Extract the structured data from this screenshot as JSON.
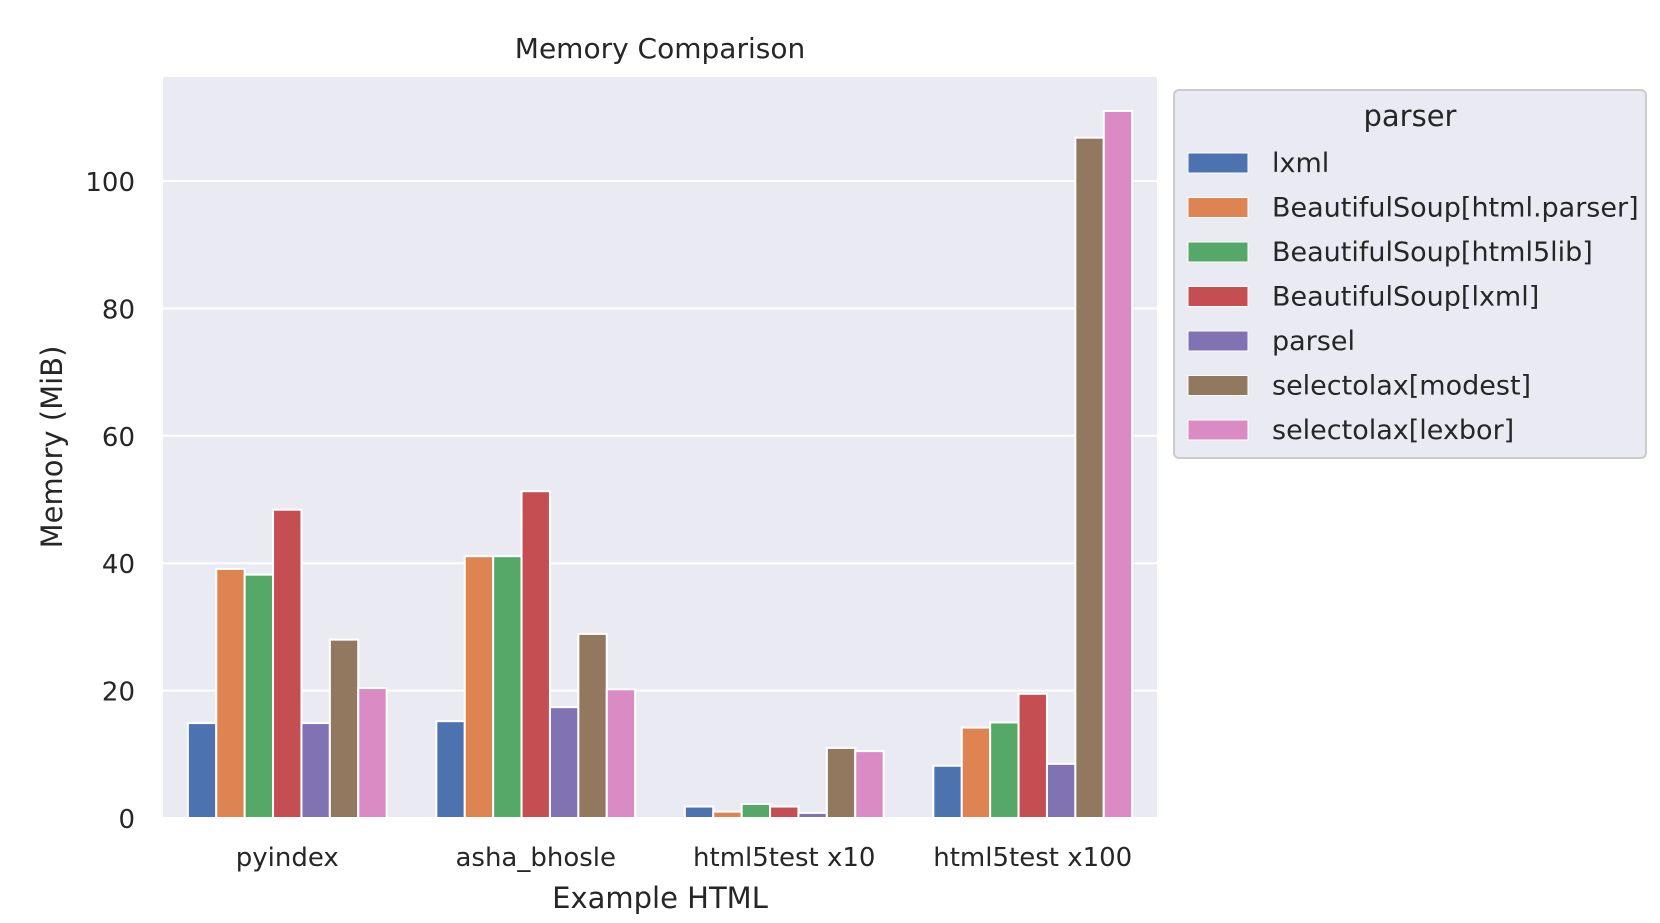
{
  "chart_data": {
    "type": "bar",
    "title": "Memory Comparison",
    "xlabel": "Example HTML",
    "ylabel": "Memory (MiB)",
    "ylim": [
      0,
      116
    ],
    "yticks": [
      0,
      20,
      40,
      60,
      80,
      100
    ],
    "grid": true,
    "legend": {
      "title": "parser",
      "placement": "outside-right-top"
    },
    "categories": [
      "pyindex",
      "asha_bhosle",
      "html5test x10",
      "html5test x100"
    ],
    "series": [
      {
        "name": "lxml",
        "color": "#4c72b0",
        "values": [
          14.9,
          15.2,
          1.8,
          8.2
        ]
      },
      {
        "name": "BeautifulSoup[html.parser]",
        "color": "#dd8452",
        "values": [
          39.1,
          41.1,
          1.0,
          14.2
        ]
      },
      {
        "name": "BeautifulSoup[html5lib]",
        "color": "#55a868",
        "values": [
          38.2,
          41.1,
          2.2,
          15.0
        ]
      },
      {
        "name": "BeautifulSoup[lxml]",
        "color": "#c44e52",
        "values": [
          48.4,
          51.3,
          1.8,
          19.5
        ]
      },
      {
        "name": "parsel",
        "color": "#8172b3",
        "values": [
          14.9,
          17.4,
          0.8,
          8.5
        ]
      },
      {
        "name": "selectolax[modest]",
        "color": "#937860",
        "values": [
          28.0,
          28.9,
          11.0,
          106.8
        ]
      },
      {
        "name": "selectolax[lexbor]",
        "color": "#da8bc3",
        "values": [
          20.4,
          20.2,
          10.5,
          111.0
        ]
      }
    ]
  }
}
